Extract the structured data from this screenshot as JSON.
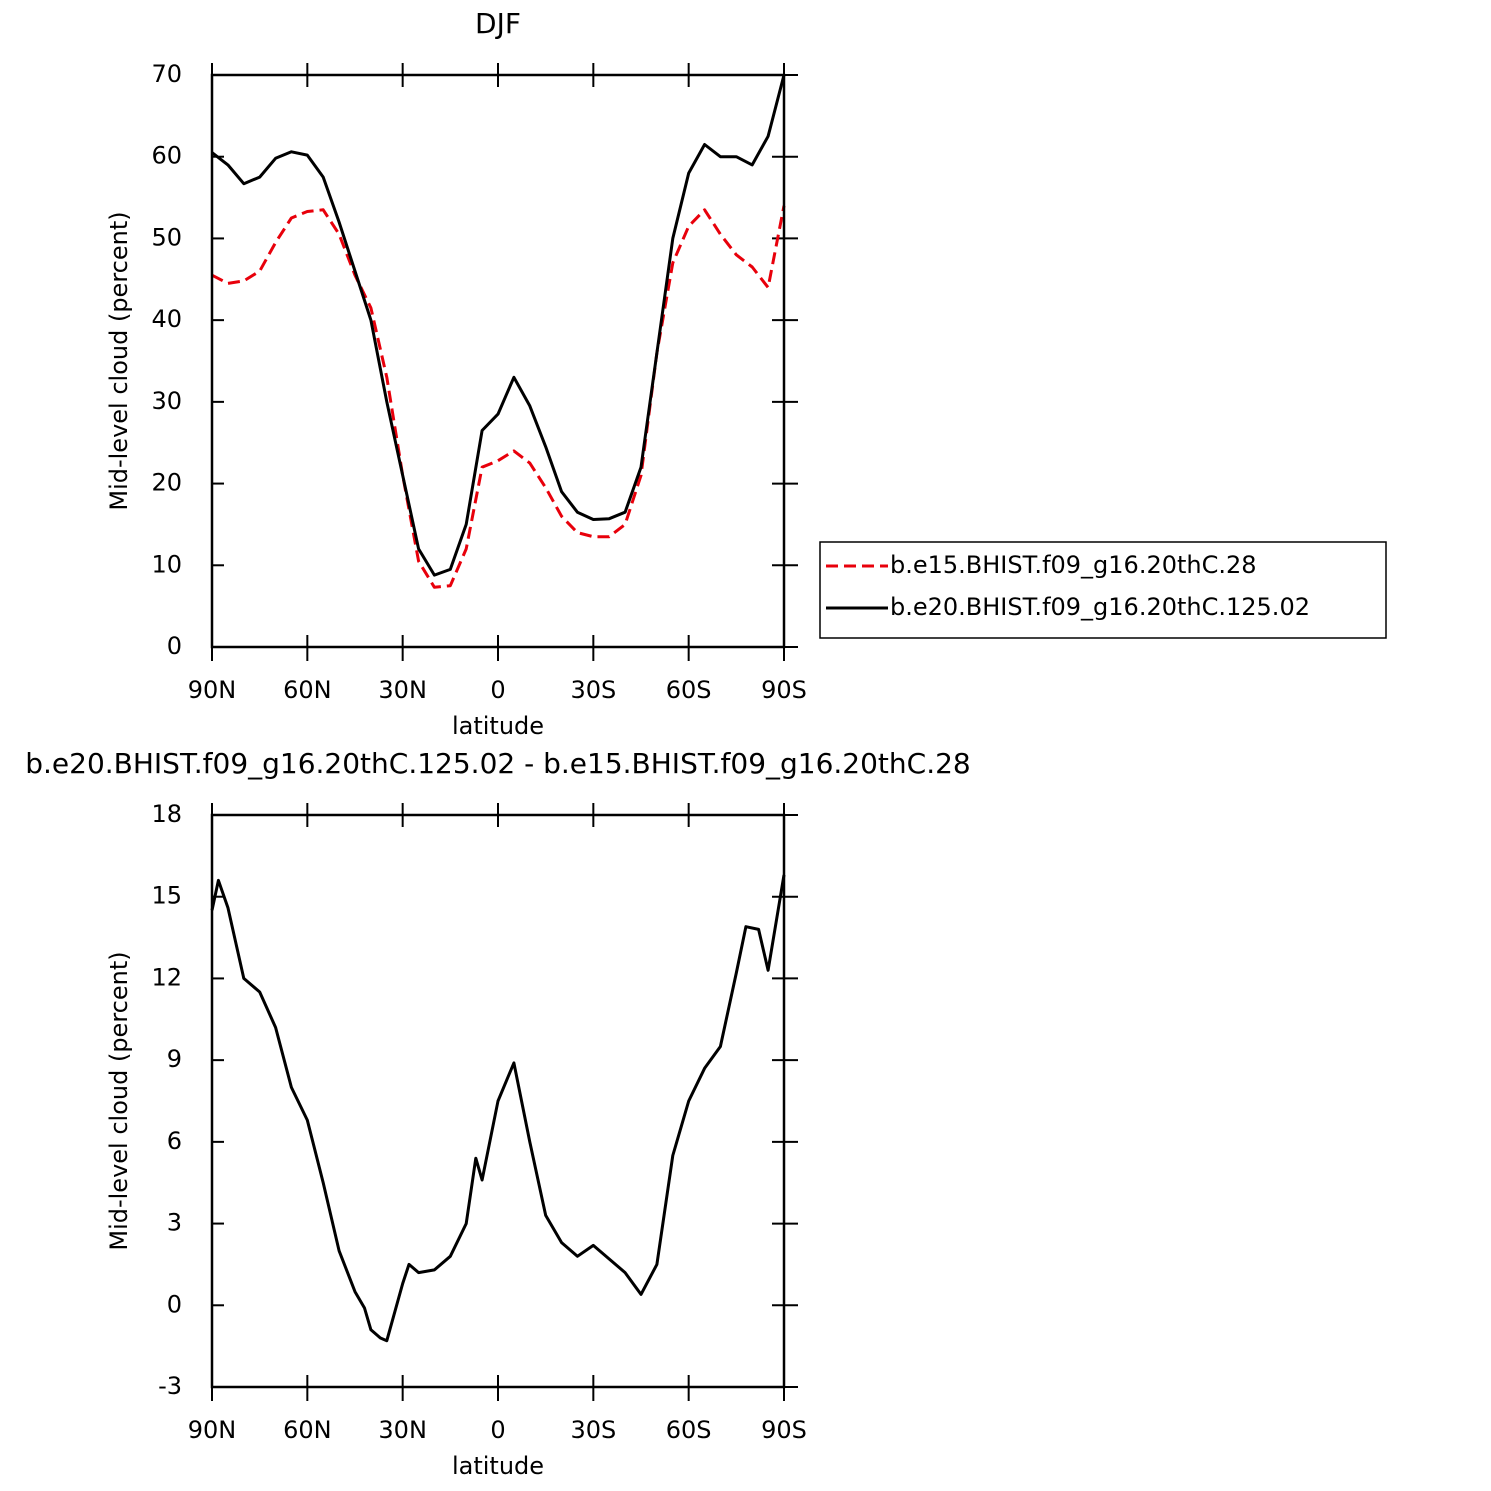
{
  "chart_data": [
    {
      "type": "line",
      "title": "DJF",
      "x_label": "latitude",
      "y_label": "Mid-level cloud (percent)",
      "x": [
        90,
        85,
        80,
        75,
        70,
        65,
        60,
        55,
        50,
        45,
        40,
        35,
        30,
        25,
        20,
        15,
        10,
        5,
        0,
        -5,
        -10,
        -15,
        -20,
        -25,
        -30,
        -35,
        -40,
        -45,
        -50,
        -55,
        -60,
        -65,
        -70,
        -75,
        -80,
        -85,
        -90
      ],
      "xlim": [
        90,
        -90
      ],
      "xticks": [
        {
          "value": 90,
          "label": "90N"
        },
        {
          "value": 60,
          "label": "60N"
        },
        {
          "value": 30,
          "label": "30N"
        },
        0,
        {
          "value": -30,
          "label": "30S"
        },
        {
          "value": -60,
          "label": "60S"
        },
        {
          "value": -90,
          "label": "90S"
        }
      ],
      "ylim": [
        0,
        70
      ],
      "yticks": [
        0,
        10,
        20,
        30,
        40,
        50,
        60,
        70
      ],
      "legend": "right",
      "series": [
        {
          "name": "b.e15.BHIST.f09_g16.20thC.28",
          "color": "#e8000b",
          "line_style": "dashed",
          "values": [
            45.5,
            44.5,
            44.8,
            46,
            49.5,
            52.5,
            53.3,
            53.5,
            50.5,
            45.5,
            41.5,
            33,
            21,
            10.5,
            7.3,
            7.5,
            12,
            22,
            22.8,
            24,
            22.5,
            19.5,
            16,
            14,
            13.5,
            13.5,
            15,
            21,
            36,
            47,
            51.5,
            53.5,
            50.5,
            48,
            46.5,
            44,
            54
          ]
        },
        {
          "name": "b.e20.BHIST.f09_g16.20thC.125.02",
          "color": "#000000",
          "line_style": "solid",
          "values": [
            60.5,
            59,
            56.7,
            57.5,
            59.8,
            60.6,
            60.2,
            57.5,
            52,
            46,
            40,
            30,
            21,
            12,
            8.8,
            9.5,
            15,
            26.5,
            28.5,
            33,
            29.5,
            24.5,
            19,
            16.5,
            15.6,
            15.7,
            16.5,
            22,
            36,
            50,
            58,
            61.5,
            60,
            60,
            59,
            62.5,
            70
          ]
        }
      ]
    },
    {
      "type": "line",
      "title": "b.e20.BHIST.f09_g16.20thC.125.02 - b.e15.BHIST.f09_g16.20thC.28",
      "x_label": "latitude",
      "y_label": "Mid-level cloud (percent)",
      "x": [
        90,
        88,
        85,
        80,
        75,
        70,
        65,
        60,
        55,
        50,
        45,
        42,
        40,
        37,
        35,
        30,
        28,
        25,
        20,
        15,
        10,
        7,
        5,
        0,
        -5,
        -10,
        -15,
        -20,
        -25,
        -30,
        -35,
        -40,
        -45,
        -50,
        -55,
        -60,
        -65,
        -70,
        -75,
        -78,
        -82,
        -85,
        -90
      ],
      "xlim": [
        90,
        -90
      ],
      "xticks": [
        {
          "value": 90,
          "label": "90N"
        },
        {
          "value": 60,
          "label": "60N"
        },
        {
          "value": 30,
          "label": "30N"
        },
        0,
        {
          "value": -30,
          "label": "30S"
        },
        {
          "value": -60,
          "label": "60S"
        },
        {
          "value": -90,
          "label": "90S"
        }
      ],
      "ylim": [
        -3,
        18
      ],
      "yticks": [
        -3,
        0,
        3,
        6,
        9,
        12,
        15,
        18
      ],
      "series": [
        {
          "color": "#000000",
          "line_style": "solid",
          "values": [
            14.5,
            15.6,
            14.6,
            12,
            11.5,
            10.2,
            8,
            6.8,
            4.5,
            2,
            0.5,
            -0.1,
            -0.9,
            -1.2,
            -1.3,
            0.8,
            1.5,
            1.2,
            1.3,
            1.8,
            3,
            5.4,
            4.6,
            7.5,
            8.9,
            6,
            3.3,
            2.3,
            1.8,
            2.2,
            1.7,
            1.2,
            0.4,
            1.5,
            5.5,
            7.5,
            8.7,
            9.5,
            12.2,
            13.9,
            13.8,
            12.3,
            15.8
          ]
        }
      ]
    }
  ]
}
